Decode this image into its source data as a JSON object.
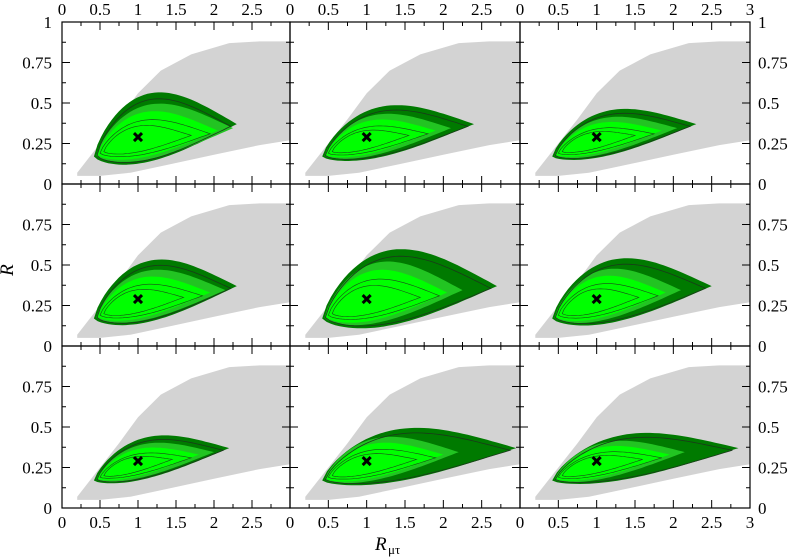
{
  "chart_data": {
    "type": "contour-grid",
    "rows": 3,
    "cols": 3,
    "xlabel": "R",
    "xlabel_sub": "μτ",
    "ylabel": "R",
    "xlim": [
      0,
      3
    ],
    "ylim": [
      0,
      1
    ],
    "x_ticks": [
      "0",
      "0.5",
      "1",
      "1.5",
      "2",
      "2.5",
      "3"
    ],
    "x_ticks_inner": [
      "0",
      "0.5",
      "1",
      "1.5",
      "2",
      "2.5"
    ],
    "y_ticks": [
      "0",
      "0.25",
      "0.5",
      "0.75",
      "1"
    ],
    "y_ticks_inner": [
      "0",
      "0.25",
      "0.5",
      "0.75"
    ],
    "best_fit": {
      "x": 1.0,
      "y": 0.29
    },
    "colors": {
      "outer": "#d3d3d3",
      "dark_green": "#007a00",
      "mid_green": "#22c422",
      "light_green": "#00ff00",
      "marker": "#000000"
    },
    "panels": [
      {
        "gray_top": 0.88,
        "dark_tip": 2.3,
        "dark_top": 0.6,
        "light_tip": 2.05
      },
      {
        "gray_top": 0.88,
        "dark_tip": 2.4,
        "dark_top": 0.5,
        "light_tip": 1.9
      },
      {
        "gray_top": 0.88,
        "dark_tip": 2.3,
        "dark_top": 0.47,
        "light_tip": 1.85
      },
      {
        "gray_top": 0.88,
        "dark_tip": 2.3,
        "dark_top": 0.56,
        "light_tip": 1.95
      },
      {
        "gray_top": 0.88,
        "dark_tip": 2.7,
        "dark_top": 0.64,
        "light_tip": 2.05
      },
      {
        "gray_top": 0.88,
        "dark_tip": 2.5,
        "dark_top": 0.57,
        "light_tip": 1.9
      },
      {
        "gray_top": 0.88,
        "dark_tip": 2.2,
        "dark_top": 0.45,
        "light_tip": 1.8
      },
      {
        "gray_top": 0.88,
        "dark_tip": 2.95,
        "dark_top": 0.51,
        "light_tip": 2.0
      },
      {
        "gray_top": 0.88,
        "dark_tip": 2.85,
        "dark_top": 0.47,
        "light_tip": 1.95
      }
    ]
  }
}
